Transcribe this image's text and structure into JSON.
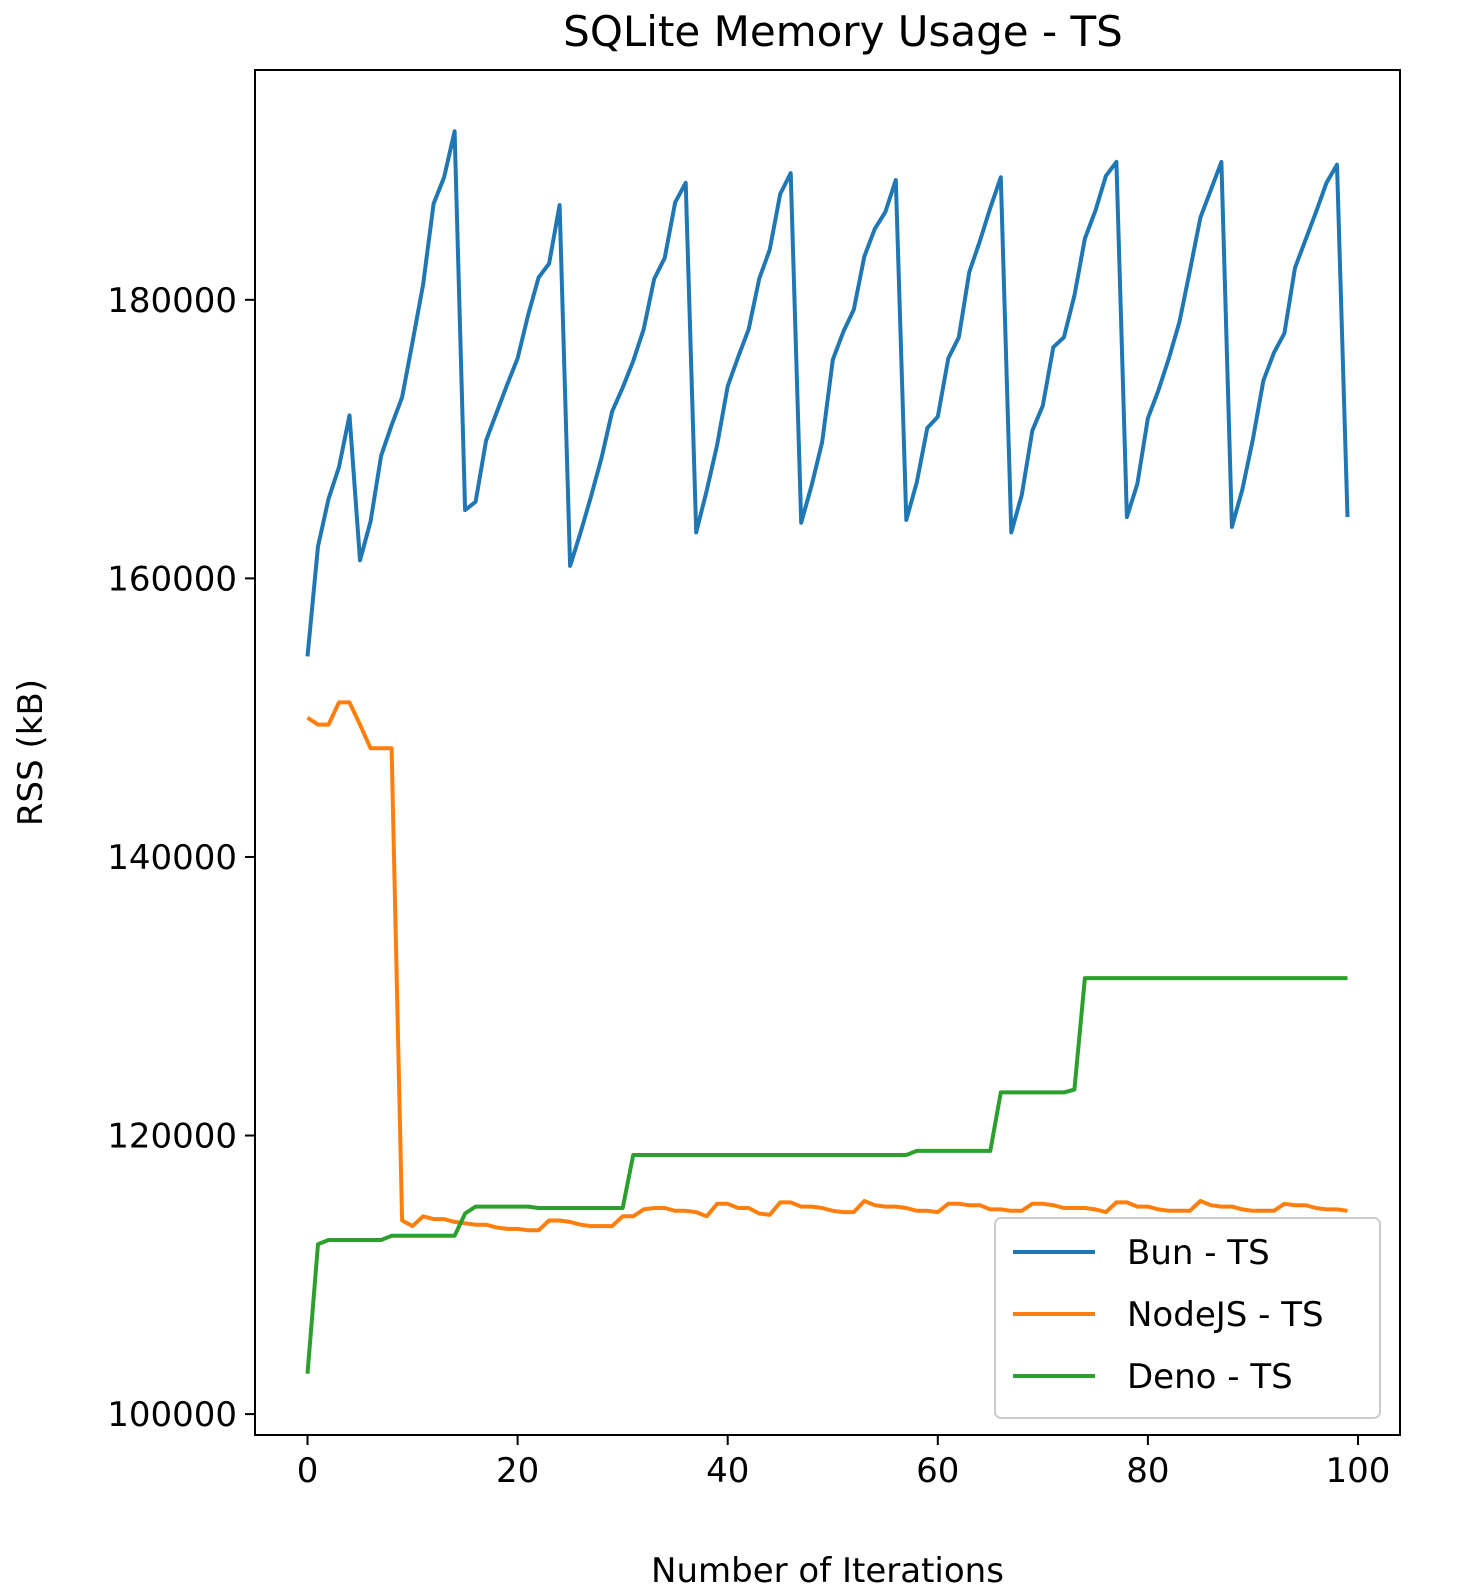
{
  "chart_data": {
    "type": "line",
    "title": "SQLite Memory Usage - TS",
    "xlabel": "Number of Iterations",
    "ylabel": "RSS (kB)",
    "xlim": [
      -5,
      104
    ],
    "ylim": [
      98500,
      196500
    ],
    "xticks": [
      0,
      20,
      40,
      60,
      80,
      100
    ],
    "yticks": [
      100000,
      120000,
      140000,
      160000,
      180000
    ],
    "grid": false,
    "legend_position": "lower-right",
    "series": [
      {
        "name": "Bun - TS",
        "color": "#1f77b4",
        "x": [
          0,
          1,
          2,
          3,
          4,
          5,
          6,
          7,
          8,
          9,
          10,
          11,
          12,
          13,
          14,
          15,
          16,
          17,
          18,
          19,
          20,
          21,
          22,
          23,
          24,
          25,
          26,
          27,
          28,
          29,
          30,
          31,
          32,
          33,
          34,
          35,
          36,
          37,
          38,
          39,
          40,
          41,
          42,
          43,
          44,
          45,
          46,
          47,
          48,
          49,
          50,
          51,
          52,
          53,
          54,
          55,
          56,
          57,
          58,
          59,
          60,
          61,
          62,
          63,
          64,
          65,
          66,
          67,
          68,
          69,
          70,
          71,
          72,
          73,
          74,
          75,
          76,
          77,
          78,
          79,
          80,
          81,
          82,
          83,
          84,
          85,
          86,
          87,
          88,
          89,
          90,
          91,
          92,
          93,
          94,
          95,
          96,
          97,
          98,
          99
        ],
        "y": [
          154400,
          162300,
          165700,
          168000,
          171700,
          161300,
          164100,
          168800,
          171000,
          173000,
          177000,
          181100,
          186900,
          188800,
          192100,
          164900,
          165500,
          169900,
          171900,
          173900,
          175800,
          178900,
          181600,
          182600,
          186800,
          160900,
          163300,
          165900,
          168700,
          172000,
          173700,
          175600,
          177900,
          181500,
          183000,
          187000,
          188400,
          163300,
          166300,
          169600,
          173800,
          175900,
          177900,
          181500,
          183600,
          187600,
          189100,
          164000,
          166700,
          169800,
          175700,
          177700,
          179300,
          183100,
          185100,
          186300,
          188600,
          164200,
          166900,
          170800,
          171600,
          175800,
          177300,
          182000,
          184200,
          186600,
          188800,
          163300,
          166000,
          170600,
          172400,
          176600,
          177300,
          180300,
          184400,
          186400,
          188900,
          189900,
          164400,
          166800,
          171500,
          173500,
          175800,
          178400,
          182100,
          185900,
          187900,
          189900,
          163700,
          166400,
          170000,
          174200,
          176200,
          177600,
          182300,
          184300,
          186300,
          188400,
          189700,
          164400
        ]
      },
      {
        "name": "NodeJS - TS",
        "color": "#ff7f0e",
        "x": [
          0,
          1,
          2,
          3,
          4,
          5,
          6,
          7,
          8,
          9,
          10,
          11,
          12,
          13,
          14,
          15,
          16,
          17,
          18,
          19,
          20,
          21,
          22,
          23,
          24,
          25,
          26,
          27,
          28,
          29,
          30,
          31,
          32,
          33,
          34,
          35,
          36,
          37,
          38,
          39,
          40,
          41,
          42,
          43,
          44,
          45,
          46,
          47,
          48,
          49,
          50,
          51,
          52,
          53,
          54,
          55,
          56,
          57,
          58,
          59,
          60,
          61,
          62,
          63,
          64,
          65,
          66,
          67,
          68,
          69,
          70,
          71,
          72,
          73,
          74,
          75,
          76,
          77,
          78,
          79,
          80,
          81,
          82,
          83,
          84,
          85,
          86,
          87,
          88,
          89,
          90,
          91,
          92,
          93,
          94,
          95,
          96,
          97,
          98,
          99
        ],
        "y": [
          150000,
          149500,
          149500,
          151100,
          151100,
          149500,
          147800,
          147800,
          147800,
          113900,
          113500,
          114200,
          114000,
          114000,
          113800,
          113700,
          113600,
          113600,
          113400,
          113300,
          113300,
          113200,
          113200,
          113900,
          113900,
          113800,
          113600,
          113500,
          113500,
          113500,
          114200,
          114200,
          114700,
          114800,
          114800,
          114600,
          114600,
          114500,
          114200,
          115100,
          115100,
          114800,
          114800,
          114400,
          114300,
          115200,
          115200,
          114900,
          114900,
          114800,
          114600,
          114500,
          114500,
          115300,
          115000,
          114900,
          114900,
          114800,
          114600,
          114600,
          114500,
          115100,
          115100,
          115000,
          115000,
          114700,
          114700,
          114600,
          114600,
          115100,
          115100,
          115000,
          114800,
          114800,
          114800,
          114700,
          114500,
          115200,
          115200,
          114900,
          114900,
          114700,
          114600,
          114600,
          114600,
          115300,
          115000,
          114900,
          114900,
          114700,
          114600,
          114600,
          114600,
          115100,
          115000,
          115000,
          114800,
          114700,
          114700,
          114600
        ]
      },
      {
        "name": "Deno - TS",
        "color": "#2ca02c",
        "x": [
          0,
          1,
          2,
          3,
          4,
          5,
          6,
          7,
          8,
          9,
          10,
          11,
          12,
          13,
          14,
          15,
          16,
          17,
          18,
          19,
          20,
          21,
          22,
          23,
          24,
          25,
          26,
          27,
          28,
          29,
          30,
          31,
          32,
          33,
          34,
          35,
          36,
          37,
          38,
          39,
          40,
          41,
          42,
          43,
          44,
          45,
          46,
          47,
          48,
          49,
          50,
          51,
          52,
          53,
          54,
          55,
          56,
          57,
          58,
          59,
          60,
          61,
          62,
          63,
          64,
          65,
          66,
          67,
          68,
          69,
          70,
          71,
          72,
          73,
          74,
          75,
          76,
          77,
          78,
          79,
          80,
          81,
          82,
          83,
          84,
          85,
          86,
          87,
          88,
          89,
          90,
          91,
          92,
          93,
          94,
          95,
          96,
          97,
          98,
          99
        ],
        "y": [
          102900,
          112200,
          112500,
          112500,
          112500,
          112500,
          112500,
          112500,
          112800,
          112800,
          112800,
          112800,
          112800,
          112800,
          112800,
          114400,
          114900,
          114900,
          114900,
          114900,
          114900,
          114900,
          114800,
          114800,
          114800,
          114800,
          114800,
          114800,
          114800,
          114800,
          114800,
          118600,
          118600,
          118600,
          118600,
          118600,
          118600,
          118600,
          118600,
          118600,
          118600,
          118600,
          118600,
          118600,
          118600,
          118600,
          118600,
          118600,
          118600,
          118600,
          118600,
          118600,
          118600,
          118600,
          118600,
          118600,
          118600,
          118600,
          118900,
          118900,
          118900,
          118900,
          118900,
          118900,
          118900,
          118900,
          123100,
          123100,
          123100,
          123100,
          123100,
          123100,
          123100,
          123300,
          131300,
          131300,
          131300,
          131300,
          131300,
          131300,
          131300,
          131300,
          131300,
          131300,
          131300,
          131300,
          131300,
          131300,
          131300,
          131300,
          131300,
          131300,
          131300,
          131300,
          131300,
          131300,
          131300,
          131300,
          131300,
          131300
        ]
      }
    ]
  }
}
